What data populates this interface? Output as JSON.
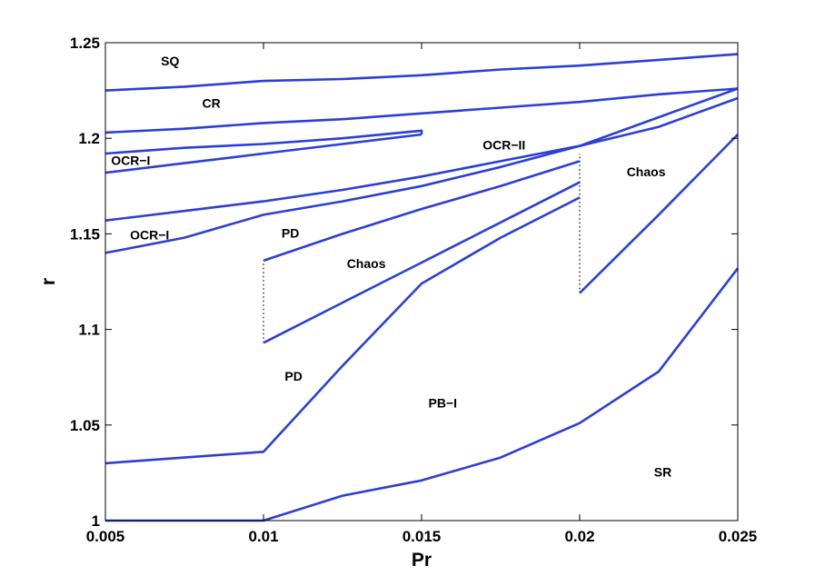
{
  "chart_data": {
    "type": "line",
    "xlabel": "Pr",
    "ylabel": "r",
    "xlim": [
      0.005,
      0.025
    ],
    "ylim": [
      1,
      1.25
    ],
    "x_ticks": [
      0.005,
      0.01,
      0.015,
      0.02,
      0.025
    ],
    "x_tick_labels": [
      "0.005",
      "0.01",
      "0.015",
      "0.02",
      "0.025"
    ],
    "y_ticks": [
      1,
      1.05,
      1.1,
      1.15,
      1.2,
      1.25
    ],
    "y_tick_labels": [
      "1",
      "1.05",
      "1.1",
      "1.15",
      "1.2",
      "1.25"
    ],
    "grid": false,
    "line_color": "#2b3fd8",
    "dotted_color": "#000000",
    "series": [
      {
        "x": [
          0.005,
          0.0075,
          0.01,
          0.0125,
          0.015,
          0.0175,
          0.02,
          0.0225,
          0.025
        ],
        "y": [
          1.225,
          1.227,
          1.23,
          1.231,
          1.233,
          1.236,
          1.238,
          1.241,
          1.244
        ]
      },
      {
        "x": [
          0.005,
          0.0075,
          0.01,
          0.0125,
          0.015,
          0.0175,
          0.02,
          0.0225,
          0.025
        ],
        "y": [
          1.203,
          1.205,
          1.208,
          1.21,
          1.213,
          1.216,
          1.219,
          1.223,
          1.226
        ]
      },
      {
        "x": [
          0.005,
          0.0075,
          0.01,
          0.0125,
          0.015,
          0.015
        ],
        "y": [
          1.192,
          1.195,
          1.197,
          1.2,
          1.204,
          1.202
        ]
      },
      {
        "x": [
          0.005,
          0.0075,
          0.01,
          0.0125,
          0.015
        ],
        "y": [
          1.182,
          1.187,
          1.192,
          1.197,
          1.202
        ]
      },
      {
        "x": [
          0.005,
          0.0075,
          0.01,
          0.0125,
          0.015,
          0.0175,
          0.02,
          0.0225,
          0.025
        ],
        "y": [
          1.157,
          1.162,
          1.167,
          1.173,
          1.18,
          1.188,
          1.196,
          1.206,
          1.221
        ]
      },
      {
        "x": [
          0.005,
          0.0075,
          0.01,
          0.0125,
          0.015,
          0.0175,
          0.02
        ],
        "y": [
          1.14,
          1.148,
          1.16,
          1.167,
          1.175,
          1.185,
          1.196
        ]
      },
      {
        "x": [
          0.02,
          0.025
        ],
        "y": [
          1.196,
          1.226
        ]
      },
      {
        "x": [
          0.01,
          0.0125,
          0.015,
          0.0175,
          0.02
        ],
        "y": [
          1.136,
          1.15,
          1.163,
          1.175,
          1.188
        ]
      },
      {
        "x": [
          0.01,
          0.0125,
          0.015,
          0.0175,
          0.02
        ],
        "y": [
          1.093,
          1.114,
          1.135,
          1.156,
          1.177
        ]
      },
      {
        "x": [
          0.005,
          0.0075,
          0.01,
          0.0125,
          0.015,
          0.0175,
          0.02
        ],
        "y": [
          1.03,
          1.033,
          1.036,
          1.081,
          1.124,
          1.148,
          1.169
        ]
      },
      {
        "x": [
          0.02,
          0.0225,
          0.025
        ],
        "y": [
          1.119,
          1.16,
          1.202
        ]
      },
      {
        "x": [
          0.005,
          0.0075,
          0.01,
          0.0125,
          0.015,
          0.0175,
          0.02,
          0.0225,
          0.025
        ],
        "y": [
          1.0,
          1.0,
          1.0,
          1.013,
          1.021,
          1.033,
          1.051,
          1.078,
          1.132
        ]
      }
    ],
    "dotted_segments": [
      {
        "x": [
          0.01,
          0.01
        ],
        "y": [
          1.093,
          1.136
        ]
      },
      {
        "x": [
          0.02,
          0.02
        ],
        "y": [
          1.119,
          1.192
        ]
      }
    ],
    "annotations": [
      {
        "text": "SQ",
        "x": 0.00705,
        "y": 1.2405
      },
      {
        "text": "CR",
        "x": 0.00835,
        "y": 1.2185
      },
      {
        "text": "OCR−I",
        "x": 0.0058,
        "y": 1.1885
      },
      {
        "text": "OCR−II",
        "x": 0.01761,
        "y": 1.1965
      },
      {
        "text": "Chaos",
        "x": 0.0221,
        "y": 1.1825
      },
      {
        "text": "OCR−I",
        "x": 0.0064,
        "y": 1.1495
      },
      {
        "text": "PD",
        "x": 0.01085,
        "y": 1.1505
      },
      {
        "text": "Chaos",
        "x": 0.01325,
        "y": 1.1345
      },
      {
        "text": "PD",
        "x": 0.01095,
        "y": 1.0755
      },
      {
        "text": "PB−I",
        "x": 0.01567,
        "y": 1.0615
      },
      {
        "text": "SR",
        "x": 0.02263,
        "y": 1.0255
      }
    ]
  }
}
